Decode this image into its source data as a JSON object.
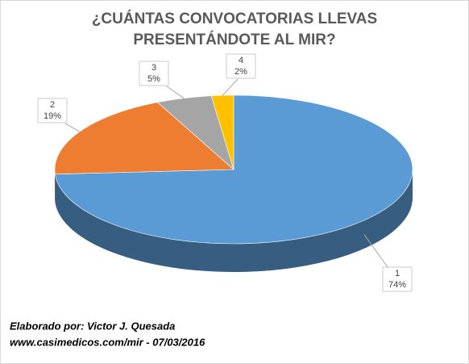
{
  "chart_data": {
    "type": "pie3d",
    "title": [
      "¿CUÁNTAS CONVOCATORIAS LLEVAS",
      "PRESENTÁNDOTE AL MIR?"
    ],
    "categories": [
      "1",
      "2",
      "3",
      "4"
    ],
    "values": [
      74,
      19,
      5,
      2
    ],
    "value_labels": [
      "74%",
      "19%",
      "5%",
      "2%"
    ],
    "colors": [
      "#5b9bd5",
      "#ed7d31",
      "#a5a5a5",
      "#ffc000"
    ],
    "annotations": [
      "Elaborado por: Victor J. Quesada",
      "www.casimedicos.com/mir - 07/03/2016"
    ]
  }
}
